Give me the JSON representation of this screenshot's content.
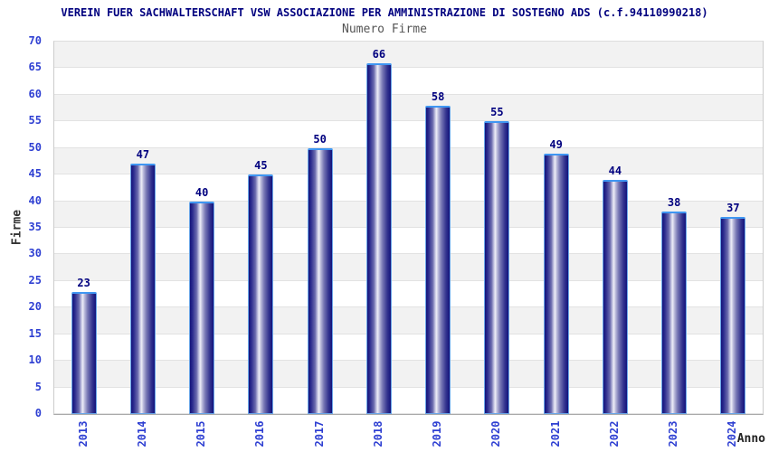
{
  "header": {
    "title": "VEREIN FUER SACHWALTERSCHAFT VSW ASSOCIAZIONE PER AMMINISTRAZIONE DI SOSTEGNO ADS (c.f.94110990218)",
    "subtitle": "Numero Firme"
  },
  "chart_data": {
    "type": "bar",
    "title": "VEREIN FUER SACHWALTERSCHAFT VSW ASSOCIAZIONE PER AMMINISTRAZIONE DI SOSTEGNO ADS (c.f.94110990218)",
    "subtitle": "Numero Firme",
    "categories": [
      "2013",
      "2014",
      "2015",
      "2016",
      "2017",
      "2018",
      "2019",
      "2020",
      "2021",
      "2022",
      "2023",
      "2024"
    ],
    "values": [
      23,
      47,
      40,
      45,
      50,
      66,
      58,
      55,
      49,
      44,
      38,
      37
    ],
    "xlabel": "Anno",
    "ylabel": "Firme",
    "ylim": [
      0,
      70
    ],
    "ytick_step": 5,
    "grid": "horizontal-bands",
    "legend": "none",
    "colors": {
      "title": "#00007f",
      "subtitle": "#555555",
      "axis_label": "#333333",
      "tick_label": "#2e3fd2",
      "value_label": "#00007f",
      "bar_dark": "#13137b",
      "bar_light": "#eeeef8",
      "bar_border": "#6aa6e8",
      "band_gray": "#f2f2f2",
      "band_white": "#ffffff",
      "gridline": "#e2e2e2"
    }
  }
}
